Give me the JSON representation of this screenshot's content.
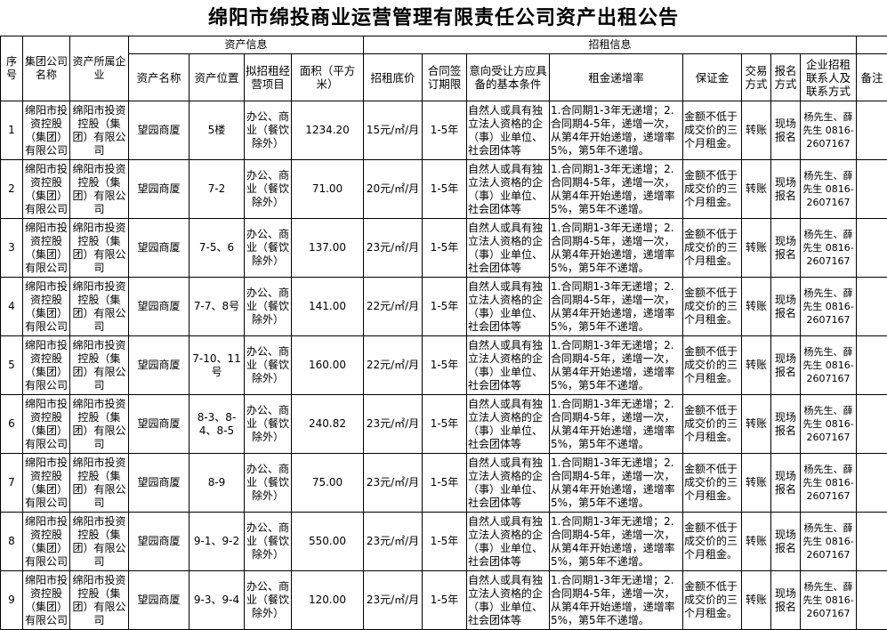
{
  "title": "绵阳市绵投商业运营管理有限责任公司资产出租公告",
  "headers": {
    "group_asset": "资产信息",
    "group_lease": "招租信息",
    "seq": "序号",
    "group_company": "集团公司名称",
    "owner": "资产所属企业",
    "asset_name": "资产名称",
    "location": "资产位置",
    "usage": "拟招租经营项目",
    "area": "面积（平方米）",
    "base_price": "招租底价",
    "term": "合同签订期限",
    "conditions": "意向受让方应具备的基本条件",
    "increase": "租金递增率",
    "deposit": "保证金",
    "trade": "交易方式",
    "signup": "报名方式",
    "contact": "企业招租联系人及联系方式",
    "remark": "备注"
  },
  "rows": [
    {
      "seq": "1",
      "group": "绵阳市投资控股（集团）有限公司",
      "owner": "绵阳市投资控股（集团）有限公司",
      "name": "望园商厦",
      "location": "5楼",
      "usage": "办公、商业（餐饮除外）",
      "area": "1234.20",
      "price": "15元/㎡/月",
      "term": "1-5年",
      "conditions": "自然人或具有独立法人资格的企（事）业单位、社会团体等",
      "increase": "1.合同期1-3年无递增；2.合同期4-5年，递增一次，从第4年开始递增，递增率5%，第5年不递增。",
      "deposit": "金额不低于成交价的三个月租金。",
      "trade": "转账",
      "signup": "现场报名",
      "contact": "杨先生、薛先生 0816-2607167",
      "remark": ""
    },
    {
      "seq": "2",
      "group": "绵阳市投资控股（集团）有限公司",
      "owner": "绵阳市投资控股（集团）有限公司",
      "name": "望园商厦",
      "location": "7-2",
      "usage": "办公、商业（餐饮除外）",
      "area": "71.00",
      "price": "20元/㎡/月",
      "term": "1-5年",
      "conditions": "自然人或具有独立法人资格的企（事）业单位、社会团体等",
      "increase": "1.合同期1-3年无递增；2.合同期4-5年，递增一次，从第4年开始递增，递增率5%，第5年不递增。",
      "deposit": "金额不低于成交价的三个月租金。",
      "trade": "转账",
      "signup": "现场报名",
      "contact": "杨先生、薛先生 0816-2607167",
      "remark": ""
    },
    {
      "seq": "3",
      "group": "绵阳市投资控股（集团）有限公司",
      "owner": "绵阳市投资控股（集团）有限公司",
      "name": "望园商厦",
      "location": "7-5、6",
      "usage": "办公、商业（餐饮除外）",
      "area": "137.00",
      "price": "23元/㎡/月",
      "term": "1-5年",
      "conditions": "自然人或具有独立法人资格的企（事）业单位、社会团体等",
      "increase": "1.合同期1-3年无递增；2.合同期4-5年，递增一次，从第4年开始递增，递增率5%，第5年不递增。",
      "deposit": "金额不低于成交价的三个月租金。",
      "trade": "转账",
      "signup": "现场报名",
      "contact": "杨先生、薛先生 0816-2607167",
      "remark": ""
    },
    {
      "seq": "4",
      "group": "绵阳市投资控股（集团）有限公司",
      "owner": "绵阳市投资控股（集团）有限公司",
      "name": "望园商厦",
      "location": "7-7、8号",
      "usage": "办公、商业（餐饮除外）",
      "area": "141.00",
      "price": "22元/㎡/月",
      "term": "1-5年",
      "conditions": "自然人或具有独立法人资格的企（事）业单位、社会团体等",
      "increase": "1.合同期1-3年无递增；2.合同期4-5年，递增一次，从第4年开始递增，递增率5%，第5年不递增。",
      "deposit": "金额不低于成交价的三个月租金。",
      "trade": "转账",
      "signup": "现场报名",
      "contact": "杨先生、薛先生 0816-2607167",
      "remark": ""
    },
    {
      "seq": "5",
      "group": "绵阳市投资控股（集团）有限公司",
      "owner": "绵阳市投资控股（集团）有限公司",
      "name": "望园商厦",
      "location": "7-10、11号",
      "usage": "办公、商业（餐饮除外）",
      "area": "160.00",
      "price": "22元/㎡/月",
      "term": "1-5年",
      "conditions": "自然人或具有独立法人资格的企（事）业单位、社会团体等",
      "increase": "1.合同期1-3年无递增；2.合同期4-5年，递增一次，从第4年开始递增，递增率5%，第5年不递增。",
      "deposit": "金额不低于成交价的三个月租金。",
      "trade": "转账",
      "signup": "现场报名",
      "contact": "杨先生、薛先生 0816-2607167",
      "remark": ""
    },
    {
      "seq": "6",
      "group": "绵阳市投资控股（集团）有限公司",
      "owner": "绵阳市投资控股（集团）有限公司",
      "name": "望园商厦",
      "location": "8-3、8-4、8-5",
      "usage": "办公、商业（餐饮除外）",
      "area": "240.82",
      "price": "23元/㎡/月",
      "term": "1-5年",
      "conditions": "自然人或具有独立法人资格的企（事）业单位、社会团体等",
      "increase": "1.合同期1-3年无递增；2.合同期4-5年，递增一次，从第4年开始递增，递增率5%，第5年不递增。",
      "deposit": "金额不低于成交价的三个月租金。",
      "trade": "转账",
      "signup": "现场报名",
      "contact": "杨先生、薛先生 0816-2607167",
      "remark": ""
    },
    {
      "seq": "7",
      "group": "绵阳市投资控股（集团）有限公司",
      "owner": "绵阳市投资控股（集团）有限公司",
      "name": "望园商厦",
      "location": "8-9",
      "usage": "办公、商业（餐饮除外）",
      "area": "75.00",
      "price": "23元/㎡/月",
      "term": "1-5年",
      "conditions": "自然人或具有独立法人资格的企（事）业单位、社会团体等",
      "increase": "1.合同期1-3年无递增；2.合同期4-5年，递增一次，从第4年开始递增，递增率5%，第5年不递增。",
      "deposit": "金额不低于成交价的三个月租金。",
      "trade": "转账",
      "signup": "现场报名",
      "contact": "杨先生、薛先生 0816-2607167",
      "remark": ""
    },
    {
      "seq": "8",
      "group": "绵阳市投资控股（集团）有限公司",
      "owner": "绵阳市投资控股（集团）有限公司",
      "name": "望园商厦",
      "location": "9-1、9-2",
      "usage": "办公、商业（餐饮除外）",
      "area": "550.00",
      "price": "23元/㎡/月",
      "term": "1-5年",
      "conditions": "自然人或具有独立法人资格的企（事）业单位、社会团体等",
      "increase": "1.合同期1-3年无递增；2.合同期4-5年，递增一次，从第4年开始递增，递增率5%，第5年不递增。",
      "deposit": "金额不低于成交价的三个月租金。",
      "trade": "转账",
      "signup": "现场报名",
      "contact": "杨先生、薛先生 0816-2607167",
      "remark": ""
    },
    {
      "seq": "9",
      "group": "绵阳市投资控股（集团）有限公司",
      "owner": "绵阳市投资控股（集团）有限公司",
      "name": "望园商厦",
      "location": "9-3、9-4",
      "usage": "办公、商业（餐饮除外）",
      "area": "120.00",
      "price": "23元/㎡/月",
      "term": "1-5年",
      "conditions": "自然人或具有独立法人资格的企（事）业单位、社会团体等",
      "increase": "1.合同期1-3年无递增；2.合同期4-5年，递增一次，从第4年开始递增，递增率5%，第5年不递增。",
      "deposit": "金额不低于成交价的三个月租金。",
      "trade": "转账",
      "signup": "现场报名",
      "contact": "杨先生、薛先生 0816-2607167",
      "remark": ""
    }
  ]
}
